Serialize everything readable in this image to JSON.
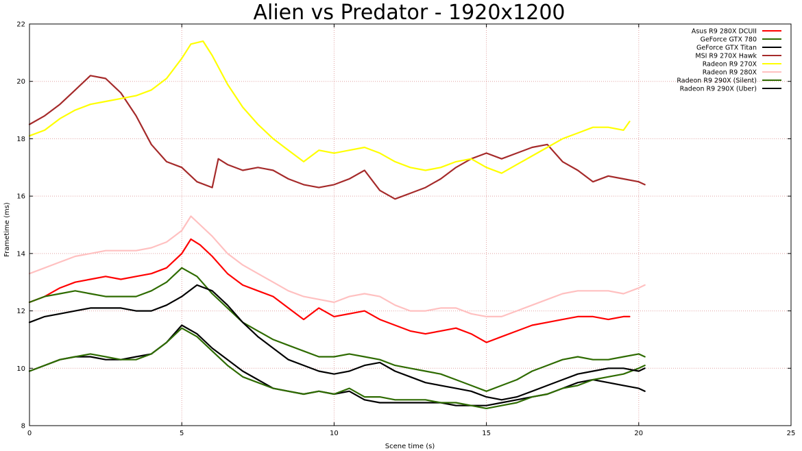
{
  "chart_data": {
    "type": "line",
    "title": "Alien vs Predator - 1920x1200",
    "xlabel": "Scene time (s)",
    "ylabel": "Frametime (ms)",
    "xlim": [
      0,
      25
    ],
    "ylim": [
      8,
      22
    ],
    "xticks": [
      "0",
      "5",
      "10",
      "15",
      "20",
      "25"
    ],
    "yticks": [
      "8",
      "10",
      "12",
      "14",
      "16",
      "18",
      "20",
      "22"
    ],
    "grid": true,
    "legend_position": "top-right",
    "series": [
      {
        "name": "Asus R9 280X DCUII",
        "color": "#ff0000",
        "x": [
          0,
          0.5,
          1,
          1.5,
          2,
          2.5,
          3,
          3.5,
          4,
          4.5,
          5,
          5.3,
          5.6,
          6,
          6.5,
          7,
          7.5,
          8,
          8.5,
          9,
          9.5,
          10,
          10.5,
          11,
          11.5,
          12,
          12.5,
          13,
          13.5,
          14,
          14.5,
          15,
          15.5,
          16,
          16.5,
          17,
          17.5,
          18,
          18.5,
          19,
          19.5,
          19.7
        ],
        "y": [
          12.3,
          12.5,
          12.8,
          13.0,
          13.1,
          13.2,
          13.1,
          13.2,
          13.3,
          13.5,
          14.0,
          14.5,
          14.3,
          13.9,
          13.3,
          12.9,
          12.7,
          12.5,
          12.1,
          11.7,
          12.1,
          11.8,
          11.9,
          12.0,
          11.7,
          11.5,
          11.3,
          11.2,
          11.3,
          11.4,
          11.2,
          10.9,
          11.1,
          11.3,
          11.5,
          11.6,
          11.7,
          11.8,
          11.8,
          11.7,
          11.8,
          11.8
        ]
      },
      {
        "name": "GeForce GTX 780",
        "color": "#2e6b00",
        "x": [
          0,
          0.5,
          1,
          1.5,
          2,
          2.5,
          3,
          3.5,
          4,
          4.5,
          5,
          5.5,
          6,
          6.5,
          7,
          7.5,
          8,
          8.5,
          9,
          9.5,
          10,
          10.5,
          11,
          11.5,
          12,
          12.5,
          13,
          13.5,
          14,
          14.5,
          15,
          15.5,
          16,
          16.5,
          17,
          17.5,
          18,
          18.5,
          19,
          19.5,
          20,
          20.2
        ],
        "y": [
          12.3,
          12.5,
          12.6,
          12.7,
          12.6,
          12.5,
          12.5,
          12.5,
          12.7,
          13.0,
          13.5,
          13.2,
          12.6,
          12.1,
          11.6,
          11.3,
          11.0,
          10.8,
          10.6,
          10.4,
          10.4,
          10.5,
          10.4,
          10.3,
          10.1,
          10.0,
          9.9,
          9.8,
          9.6,
          9.4,
          9.2,
          9.4,
          9.6,
          9.9,
          10.1,
          10.3,
          10.4,
          10.3,
          10.3,
          10.4,
          10.5,
          10.4
        ]
      },
      {
        "name": "GeForce GTX Titan",
        "color": "#000000",
        "x": [
          0,
          0.5,
          1,
          1.5,
          2,
          2.5,
          3,
          3.5,
          4,
          4.5,
          5,
          5.5,
          6,
          6.5,
          7,
          7.5,
          8,
          8.5,
          9,
          9.5,
          10,
          10.5,
          11,
          11.5,
          12,
          12.5,
          13,
          13.5,
          14,
          14.5,
          15,
          15.5,
          16,
          16.5,
          17,
          17.5,
          18,
          18.5,
          19,
          19.5,
          20,
          20.2
        ],
        "y": [
          9.9,
          10.1,
          10.3,
          10.4,
          10.4,
          10.3,
          10.3,
          10.4,
          10.5,
          10.9,
          11.5,
          11.2,
          10.7,
          10.3,
          9.9,
          9.6,
          9.3,
          9.2,
          9.1,
          9.2,
          9.1,
          9.2,
          8.9,
          8.8,
          8.8,
          8.8,
          8.8,
          8.8,
          8.7,
          8.7,
          8.7,
          8.8,
          8.9,
          9.0,
          9.1,
          9.3,
          9.5,
          9.6,
          9.5,
          9.4,
          9.3,
          9.2
        ]
      },
      {
        "name": "MSI R9 270X Hawk",
        "color": "#a52a2a",
        "x": [
          0,
          0.5,
          1,
          1.5,
          2,
          2.5,
          3,
          3.5,
          4,
          4.5,
          5,
          5.5,
          6,
          6.2,
          6.5,
          7,
          7.5,
          8,
          8.5,
          9,
          9.5,
          10,
          10.5,
          11,
          11.5,
          12,
          12.5,
          13,
          13.5,
          14,
          14.5,
          15,
          15.5,
          16,
          16.5,
          17,
          17.5,
          18,
          18.5,
          19,
          19.5,
          20,
          20.2
        ],
        "y": [
          18.5,
          18.8,
          19.2,
          19.7,
          20.2,
          20.1,
          19.6,
          18.8,
          17.8,
          17.2,
          17.0,
          16.5,
          16.3,
          17.3,
          17.1,
          16.9,
          17.0,
          16.9,
          16.6,
          16.4,
          16.3,
          16.4,
          16.6,
          16.9,
          16.2,
          15.9,
          16.1,
          16.3,
          16.6,
          17.0,
          17.3,
          17.5,
          17.3,
          17.5,
          17.7,
          17.8,
          17.2,
          16.9,
          16.5,
          16.7,
          16.6,
          16.5,
          16.4
        ]
      },
      {
        "name": "Radeon R9 270X",
        "color": "#ffff00",
        "x": [
          0,
          0.5,
          1,
          1.5,
          2,
          2.5,
          3,
          3.5,
          4,
          4.5,
          5,
          5.3,
          5.7,
          6,
          6.5,
          7,
          7.5,
          8,
          8.5,
          9,
          9.5,
          10,
          10.5,
          11,
          11.5,
          12,
          12.5,
          13,
          13.5,
          14,
          14.5,
          15,
          15.5,
          16,
          16.5,
          17,
          17.5,
          18,
          18.5,
          19,
          19.5,
          19.7
        ],
        "y": [
          18.1,
          18.3,
          18.7,
          19.0,
          19.2,
          19.3,
          19.4,
          19.5,
          19.7,
          20.1,
          20.8,
          21.3,
          21.4,
          20.9,
          19.9,
          19.1,
          18.5,
          18.0,
          17.6,
          17.2,
          17.6,
          17.5,
          17.6,
          17.7,
          17.5,
          17.2,
          17.0,
          16.9,
          17.0,
          17.2,
          17.3,
          17.0,
          16.8,
          17.1,
          17.4,
          17.7,
          18.0,
          18.2,
          18.4,
          18.4,
          18.3,
          18.6
        ]
      },
      {
        "name": "Radeon R9 280X",
        "color": "#ffc0c0",
        "x": [
          0,
          0.5,
          1,
          1.5,
          2,
          2.5,
          3,
          3.5,
          4,
          4.5,
          5,
          5.3,
          5.6,
          6,
          6.5,
          7,
          7.5,
          8,
          8.5,
          9,
          9.5,
          10,
          10.5,
          11,
          11.5,
          12,
          12.5,
          13,
          13.5,
          14,
          14.5,
          15,
          15.5,
          16,
          16.5,
          17,
          17.5,
          18,
          18.5,
          19,
          19.5,
          20,
          20.2
        ],
        "y": [
          13.3,
          13.5,
          13.7,
          13.9,
          14.0,
          14.1,
          14.1,
          14.1,
          14.2,
          14.4,
          14.8,
          15.3,
          15.0,
          14.6,
          14.0,
          13.6,
          13.3,
          13.0,
          12.7,
          12.5,
          12.4,
          12.3,
          12.5,
          12.6,
          12.5,
          12.2,
          12.0,
          12.0,
          12.1,
          12.1,
          11.9,
          11.8,
          11.8,
          12.0,
          12.2,
          12.4,
          12.6,
          12.7,
          12.7,
          12.7,
          12.6,
          12.8,
          12.9
        ]
      },
      {
        "name": "Radeon R9 290X (Silent)",
        "color": "#2e6b00",
        "x": [
          0,
          0.5,
          1,
          1.5,
          2,
          2.5,
          3,
          3.5,
          4,
          4.5,
          5,
          5.5,
          6,
          6.5,
          7,
          7.5,
          8,
          8.5,
          9,
          9.5,
          10,
          10.5,
          11,
          11.5,
          12,
          12.5,
          13,
          13.5,
          14,
          14.5,
          15,
          15.5,
          16,
          16.5,
          17,
          17.5,
          18,
          18.5,
          19,
          19.5,
          20,
          20.2
        ],
        "y": [
          9.9,
          10.1,
          10.3,
          10.4,
          10.5,
          10.4,
          10.3,
          10.3,
          10.5,
          10.9,
          11.4,
          11.1,
          10.6,
          10.1,
          9.7,
          9.5,
          9.3,
          9.2,
          9.1,
          9.2,
          9.1,
          9.3,
          9.0,
          9.0,
          8.9,
          8.9,
          8.9,
          8.8,
          8.8,
          8.7,
          8.6,
          8.7,
          8.8,
          9.0,
          9.1,
          9.3,
          9.4,
          9.6,
          9.7,
          9.8,
          10.0,
          10.1
        ]
      },
      {
        "name": "Radeon R9 290X (Uber)",
        "color": "#000000",
        "x": [
          0,
          0.5,
          1,
          1.5,
          2,
          2.5,
          3,
          3.5,
          4,
          4.5,
          5,
          5.5,
          6,
          6.5,
          7,
          7.5,
          8,
          8.5,
          9,
          9.5,
          10,
          10.5,
          11,
          11.5,
          12,
          12.5,
          13,
          13.5,
          14,
          14.5,
          15,
          15.5,
          16,
          16.5,
          17,
          17.5,
          18,
          18.5,
          19,
          19.5,
          20,
          20.2
        ],
        "y": [
          11.6,
          11.8,
          11.9,
          12.0,
          12.1,
          12.1,
          12.1,
          12.0,
          12.0,
          12.2,
          12.5,
          12.9,
          12.7,
          12.2,
          11.6,
          11.1,
          10.7,
          10.3,
          10.1,
          9.9,
          9.8,
          9.9,
          10.1,
          10.2,
          9.9,
          9.7,
          9.5,
          9.4,
          9.3,
          9.2,
          9.0,
          8.9,
          9.0,
          9.2,
          9.4,
          9.6,
          9.8,
          9.9,
          10.0,
          10.0,
          9.9,
          10.0
        ]
      }
    ]
  }
}
